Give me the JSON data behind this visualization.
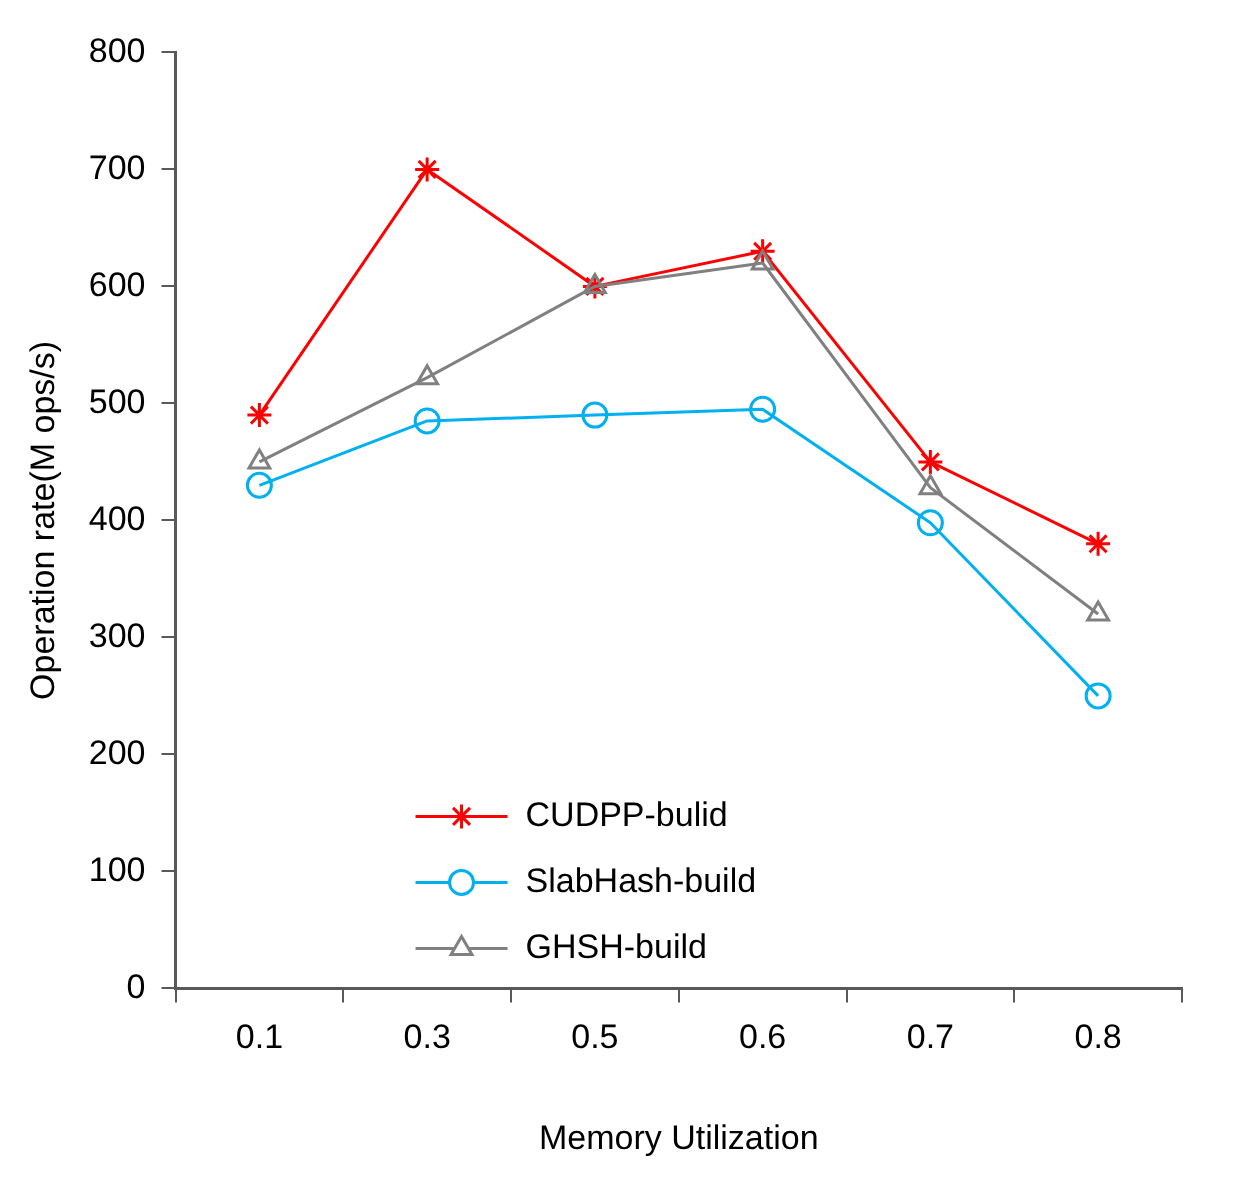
{
  "chart_data": {
    "type": "line",
    "xlabel": "Memory Utilization",
    "ylabel": "Operation rate(M ops/s)",
    "categories": [
      "0.1",
      "0.3",
      "0.5",
      "0.6",
      "0.7",
      "0.8"
    ],
    "ylim": [
      0,
      800
    ],
    "yticks": [
      0,
      100,
      200,
      300,
      400,
      500,
      600,
      700,
      800
    ],
    "grid": false,
    "legend": "bottom",
    "line_style": "solid",
    "series": [
      {
        "name": "CUDPP-bulid",
        "color": "#ff0000",
        "marker": "cross",
        "values": [
          490,
          700,
          600,
          630,
          450,
          380
        ]
      },
      {
        "name": "SlabHash-build",
        "color": "#00b0f0",
        "marker": "circle",
        "values": [
          430,
          485,
          490,
          495,
          398,
          250
        ]
      },
      {
        "name": "GHSH-build",
        "color": "#808080",
        "marker": "triangle",
        "values": [
          450,
          522,
          600,
          620,
          428,
          320
        ]
      }
    ]
  }
}
